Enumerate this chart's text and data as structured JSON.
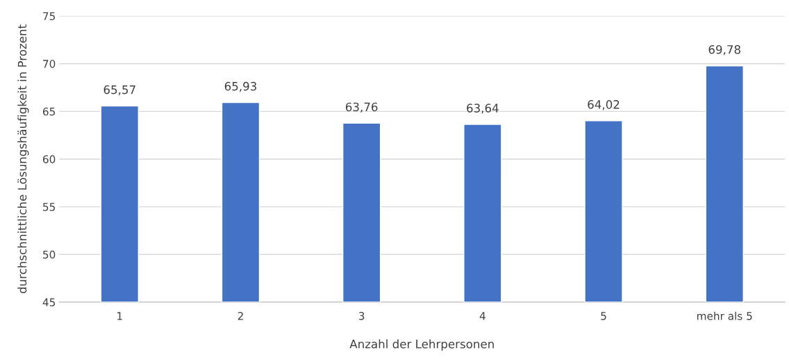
{
  "chart_data": {
    "type": "bar",
    "xlabel": "Anzahl der Lehrpersonen",
    "ylabel": "durchschnittliche Lösungshäufigkeit in Prozent",
    "categories": [
      "1",
      "2",
      "3",
      "4",
      "5",
      "mehr als 5"
    ],
    "values": [
      65.57,
      65.93,
      63.76,
      63.64,
      64.02,
      69.78
    ],
    "value_labels": [
      "65,57",
      "65,93",
      "63,76",
      "63,64",
      "64,02",
      "69,78"
    ],
    "color": "#4472c4",
    "ylim": [
      45,
      75
    ],
    "yticks": [
      45,
      50,
      55,
      60,
      65,
      70,
      75
    ],
    "grid": "y"
  }
}
